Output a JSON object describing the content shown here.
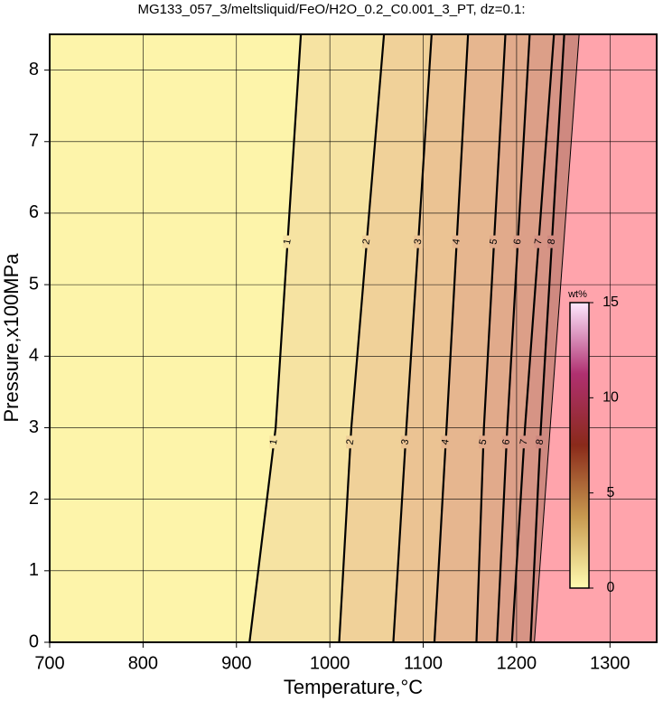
{
  "chart_data": {
    "type": "contour",
    "title": "MG133_057_3/meltsliquid/FeO/H2O_0.2_C0.001_3_PT, dz=0.1:",
    "x_label": "Temperature,°C",
    "y_label": "Pressure,x100MPa",
    "xlim": [
      700,
      1350
    ],
    "ylim": [
      0,
      8.5
    ],
    "xticks": [
      700,
      800,
      900,
      1000,
      1100,
      1200,
      1300
    ],
    "yticks": [
      0,
      1,
      2,
      3,
      4,
      5,
      6,
      7,
      8
    ],
    "grid": true,
    "background_color": "#fdf4aa",
    "levels": [
      {
        "value": 1,
        "color": "#f6e3a2",
        "x": [
          914,
          942,
          969
        ],
        "y": [
          0,
          3,
          8.5
        ]
      },
      {
        "value": 2,
        "color": "#f0d199",
        "x": [
          1010,
          1023,
          1058
        ],
        "y": [
          0,
          3,
          8.5
        ]
      },
      {
        "value": 3,
        "color": "#ebc393",
        "x": [
          1068,
          1082,
          1109
        ],
        "y": [
          0,
          3,
          8.5
        ]
      },
      {
        "value": 4,
        "color": "#e6b68f",
        "x": [
          1112,
          1125,
          1148
        ],
        "y": [
          0,
          3,
          8.5
        ]
      },
      {
        "value": 5,
        "color": "#e1aa8b",
        "x": [
          1157,
          1165,
          1188
        ],
        "y": [
          0,
          3,
          8.5
        ]
      },
      {
        "value": 6,
        "color": "#dc9f88",
        "x": [
          1179,
          1190,
          1214
        ],
        "y": [
          0,
          3,
          8.5
        ]
      },
      {
        "value": 7,
        "color": "#d69485",
        "x": [
          1195,
          1209,
          1240
        ],
        "y": [
          0,
          3,
          8.5
        ]
      },
      {
        "value": 8,
        "color": "#cf8980",
        "x": [
          1215,
          1226,
          1251
        ],
        "y": [
          0,
          3,
          8.5
        ]
      }
    ],
    "boundary": {
      "color": "#ffa4ac",
      "x": [
        1219,
        1267
      ],
      "y": [
        0,
        8.5
      ]
    },
    "colorbar": {
      "label": "wt%",
      "lim": [
        0,
        15
      ],
      "ticks": [
        0,
        5,
        10,
        15
      ],
      "colors": [
        "#fffbb0",
        "#c89a50",
        "#8a2a1a",
        "#b03070",
        "#ffe8ff"
      ]
    }
  }
}
